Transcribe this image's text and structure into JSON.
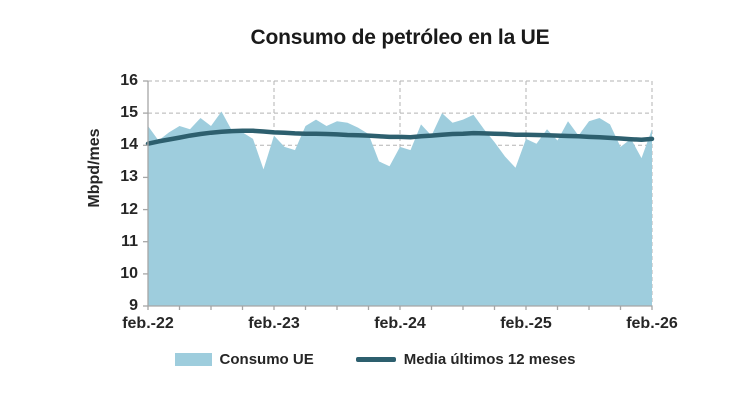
{
  "chart_data": {
    "type": "area",
    "title": "Consumo de petróleo en la UE",
    "ylabel": "Mbpd/mes",
    "ylim": [
      9,
      16
    ],
    "y_ticks": [
      9,
      10,
      11,
      12,
      13,
      14,
      15,
      16
    ],
    "x_tick_labels": [
      "feb.-22",
      "feb.-23",
      "feb.-24",
      "feb.-25",
      "feb.-26"
    ],
    "x_tick_month_index": [
      0,
      12,
      24,
      36,
      48
    ],
    "x_minor_tick_every_months": 3,
    "x_range_note": "monthly data, feb-2022 through feb-2026",
    "grid": "dashed",
    "legend_position": "bottom",
    "series": [
      {
        "name": "Consumo UE",
        "type": "area",
        "color": "#9ecddd",
        "values": [
          14.6,
          14.15,
          14.4,
          14.6,
          14.5,
          14.85,
          14.6,
          15.05,
          14.45,
          14.4,
          14.2,
          13.25,
          14.3,
          13.95,
          13.85,
          14.6,
          14.8,
          14.6,
          14.75,
          14.7,
          14.55,
          14.35,
          13.5,
          13.35,
          13.95,
          13.85,
          14.65,
          14.3,
          15.0,
          14.7,
          14.8,
          14.95,
          14.5,
          14.1,
          13.65,
          13.3,
          14.2,
          14.05,
          14.5,
          14.15,
          14.75,
          14.3,
          14.75,
          14.85,
          14.65,
          13.95,
          14.2,
          13.6,
          14.5
        ]
      },
      {
        "name": "Media últimos 12 meses",
        "type": "line",
        "color": "#2d5f6e",
        "values": [
          14.05,
          14.12,
          14.18,
          14.24,
          14.3,
          14.35,
          14.39,
          14.42,
          14.44,
          14.45,
          14.45,
          14.43,
          14.4,
          14.39,
          14.37,
          14.36,
          14.36,
          14.35,
          14.34,
          14.32,
          14.31,
          14.3,
          14.28,
          14.26,
          14.26,
          14.25,
          14.28,
          14.3,
          14.33,
          14.35,
          14.36,
          14.38,
          14.37,
          14.36,
          14.35,
          14.33,
          14.33,
          14.32,
          14.31,
          14.3,
          14.29,
          14.28,
          14.26,
          14.25,
          14.23,
          14.21,
          14.19,
          14.17,
          14.2
        ]
      }
    ]
  },
  "colors": {
    "background": "#ffffff",
    "grid": "#b3b3b3",
    "axis": "#a6a6a6",
    "text": "#262626",
    "title": "#1a1a1a",
    "area": "#9ecddd",
    "line": "#2d5f6e"
  }
}
